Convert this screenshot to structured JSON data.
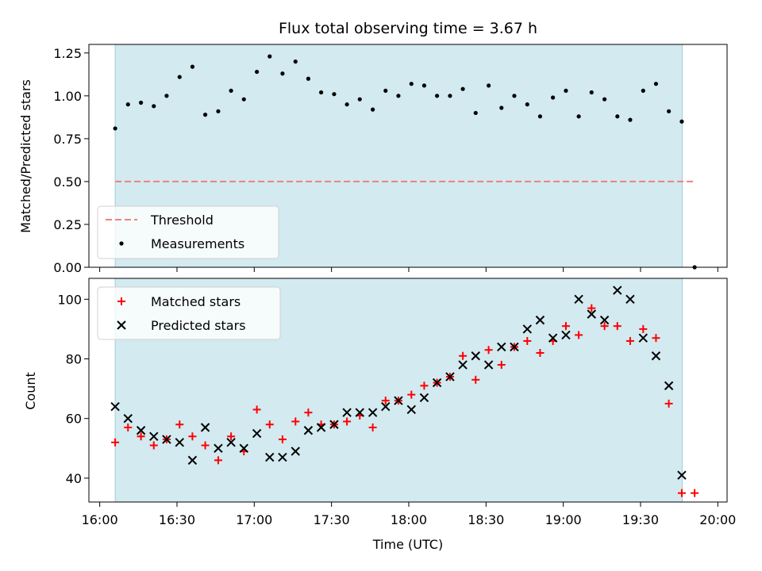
{
  "chart_data": [
    {
      "type": "scatter",
      "title": "Flux total observing time = 3.67 h",
      "ylabel": "Matched/Predicted stars",
      "xlabel": "",
      "x_unit": "hours since 16:00 UTC",
      "xlim": [
        15.93,
        20.06
      ],
      "ylim": [
        0,
        1.3
      ],
      "yticks": [
        0.0,
        0.25,
        0.5,
        0.75,
        1.0,
        1.25
      ],
      "ytick_labels": [
        "0.00",
        "0.25",
        "0.50",
        "0.75",
        "1.00",
        "1.25"
      ],
      "grid": false,
      "legend_position": "lower-left",
      "shaded_span": [
        16.1,
        19.77
      ],
      "shaded_color": "#d2eaf0",
      "threshold": {
        "name": "Threshold",
        "value": 0.5,
        "x_range": [
          16.1,
          19.85
        ],
        "color": "#f08080"
      },
      "series": [
        {
          "name": "Measurements",
          "color": "#000000",
          "x": [
            16.1,
            16.183,
            16.267,
            16.35,
            16.433,
            16.517,
            16.6,
            16.683,
            16.767,
            16.85,
            16.933,
            17.017,
            17.1,
            17.183,
            17.267,
            17.35,
            17.433,
            17.517,
            17.6,
            17.683,
            17.767,
            17.85,
            17.933,
            18.017,
            18.1,
            18.183,
            18.267,
            18.35,
            18.433,
            18.517,
            18.6,
            18.683,
            18.767,
            18.85,
            18.933,
            19.017,
            19.1,
            19.183,
            19.267,
            19.35,
            19.433,
            19.517,
            19.6,
            19.683,
            19.767,
            19.85
          ],
          "y": [
            0.81,
            0.95,
            0.96,
            0.94,
            1.0,
            1.11,
            1.17,
            0.89,
            0.91,
            1.03,
            0.98,
            1.14,
            1.23,
            1.13,
            1.2,
            1.1,
            1.02,
            1.01,
            0.95,
            0.98,
            0.92,
            1.03,
            1.0,
            1.07,
            1.06,
            1.0,
            1.0,
            1.04,
            0.9,
            1.06,
            0.93,
            1.0,
            0.95,
            0.88,
            0.99,
            1.03,
            0.88,
            1.02,
            0.98,
            0.88,
            0.86,
            1.03,
            1.07,
            0.91,
            0.85,
            0.0
          ]
        }
      ]
    },
    {
      "type": "scatter",
      "title": "",
      "ylabel": "Count",
      "xlabel": "Time (UTC)",
      "x_unit": "hours since 16:00 UTC",
      "xlim": [
        15.93,
        20.06
      ],
      "ylim": [
        32,
        107
      ],
      "yticks": [
        40,
        60,
        80,
        100
      ],
      "ytick_labels": [
        "40",
        "60",
        "80",
        "100"
      ],
      "xticks": [
        16.0,
        16.5,
        17.0,
        17.5,
        18.0,
        18.5,
        19.0,
        19.5,
        20.0
      ],
      "xtick_labels": [
        "16:00",
        "16:30",
        "17:00",
        "17:30",
        "18:00",
        "18:30",
        "19:00",
        "19:30",
        "20:00"
      ],
      "grid": false,
      "legend_position": "upper-left",
      "shaded_span": [
        16.1,
        19.77
      ],
      "shaded_color": "#d2eaf0",
      "series": [
        {
          "name": "Matched stars",
          "marker": "plus",
          "color": "#ff0000",
          "x": [
            16.1,
            16.183,
            16.267,
            16.35,
            16.433,
            16.517,
            16.6,
            16.683,
            16.767,
            16.85,
            16.933,
            17.017,
            17.1,
            17.183,
            17.267,
            17.35,
            17.433,
            17.517,
            17.6,
            17.683,
            17.767,
            17.85,
            17.933,
            18.017,
            18.1,
            18.183,
            18.267,
            18.35,
            18.433,
            18.517,
            18.6,
            18.683,
            18.767,
            18.85,
            18.933,
            19.017,
            19.1,
            19.183,
            19.267,
            19.35,
            19.433,
            19.517,
            19.6,
            19.683,
            19.767,
            19.85
          ],
          "y": [
            52,
            57,
            54,
            51,
            53,
            58,
            54,
            51,
            46,
            54,
            49,
            63,
            58,
            53,
            59,
            62,
            58,
            58,
            59,
            61,
            57,
            66,
            66,
            68,
            71,
            72,
            74,
            81,
            73,
            83,
            78,
            84,
            86,
            82,
            86,
            91,
            88,
            97,
            91,
            91,
            86,
            90,
            87,
            65,
            35,
            35
          ]
        },
        {
          "name": "Predicted stars",
          "marker": "cross",
          "color": "#000000",
          "x": [
            16.1,
            16.183,
            16.267,
            16.35,
            16.433,
            16.517,
            16.6,
            16.683,
            16.767,
            16.85,
            16.933,
            17.017,
            17.1,
            17.183,
            17.267,
            17.35,
            17.433,
            17.517,
            17.6,
            17.683,
            17.767,
            17.85,
            17.933,
            18.017,
            18.1,
            18.183,
            18.267,
            18.35,
            18.433,
            18.517,
            18.6,
            18.683,
            18.767,
            18.85,
            18.933,
            19.017,
            19.1,
            19.183,
            19.267,
            19.35,
            19.433,
            19.517,
            19.6,
            19.683,
            19.767
          ],
          "y": [
            64,
            60,
            56,
            54,
            53,
            52,
            46,
            57,
            50,
            52,
            50,
            55,
            47,
            47,
            49,
            56,
            57,
            58,
            62,
            62,
            62,
            64,
            66,
            63,
            67,
            72,
            74,
            78,
            81,
            78,
            84,
            84,
            90,
            93,
            87,
            88,
            100,
            95,
            93,
            103,
            100,
            87,
            81,
            71,
            41
          ]
        }
      ]
    }
  ]
}
